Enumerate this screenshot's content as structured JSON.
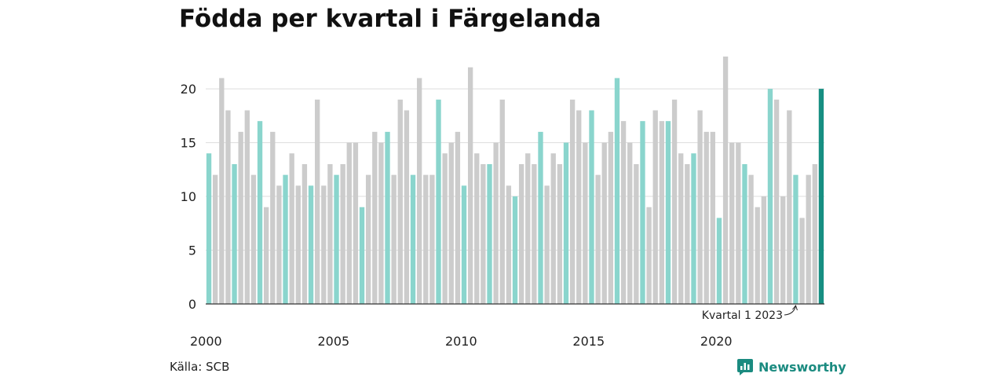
{
  "title": "Födda per kvartal i Färgelanda",
  "source": "Källa: SCB",
  "brand": {
    "name": "Newsworthy",
    "icon": "newsworthy-logo-icon"
  },
  "annotation": {
    "text": "Kvartal 1 2023"
  },
  "colors": {
    "q1": "#8ad5cd",
    "other": "#cccccc",
    "highlight": "#178f82",
    "grid": "#dddddd",
    "brand": "#1b8b80"
  },
  "chart_data": {
    "type": "bar",
    "title": "Födda per kvartal i Färgelanda",
    "xlabel": "",
    "ylabel": "",
    "ylim": [
      0,
      23
    ],
    "yticks": [
      0,
      5,
      10,
      15,
      20
    ],
    "x_tick_labels": [
      "2000",
      "2005",
      "2010",
      "2015",
      "2020"
    ],
    "grid": true,
    "legend": "none",
    "start_year": 2000,
    "quarters_per_year": 4,
    "series": [
      {
        "values": [
          14,
          12,
          21,
          18,
          13,
          16,
          18,
          12,
          17,
          9,
          16,
          11,
          12,
          14,
          11,
          13,
          11,
          19,
          11,
          13,
          12,
          13,
          15,
          15,
          9,
          12,
          16,
          15,
          16,
          12,
          19,
          18,
          12,
          21,
          12,
          12,
          19,
          14,
          15,
          16,
          11,
          22,
          14,
          13,
          13,
          15,
          19,
          11,
          10,
          13,
          14,
          13,
          16,
          11,
          14,
          13,
          15,
          19,
          18,
          15,
          18,
          12,
          15,
          16,
          21,
          17,
          15,
          13,
          17,
          9,
          18,
          17,
          17,
          19,
          14,
          13,
          14,
          18,
          16,
          16,
          8,
          23,
          15,
          15,
          13,
          12,
          9,
          10,
          20,
          19,
          10,
          18,
          12,
          8,
          12,
          13,
          20
        ]
      }
    ]
  }
}
